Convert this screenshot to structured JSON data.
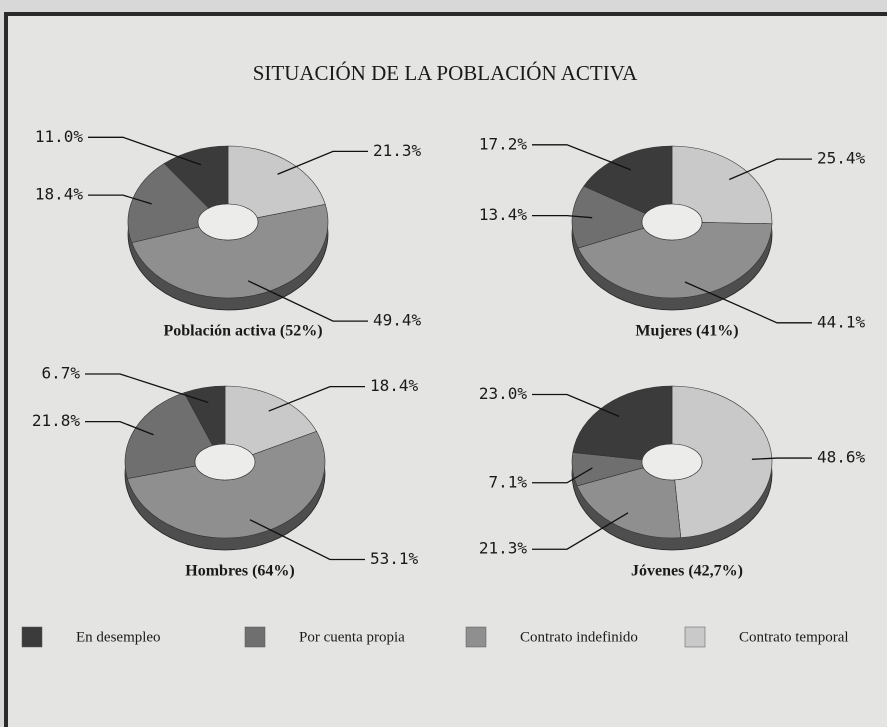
{
  "title": "SITUACIÓN DE LA POBLACIÓN ACTIVA",
  "legend": {
    "categories": [
      "En desempleo",
      "Por cuenta propia",
      "Contrato indefinido",
      "Contrato temporal"
    ],
    "colors": [
      "#3b3b3b",
      "#6f6f6f",
      "#8f8f8f",
      "#c9c9c9"
    ]
  },
  "chart_data": [
    {
      "type": "pie",
      "title": "Población activa (52%)",
      "values": [
        11.0,
        18.4,
        49.4,
        21.3
      ],
      "value_labels": [
        "11.0%",
        "18.4%",
        "49.4%",
        "21.3%"
      ]
    },
    {
      "type": "pie",
      "title": "Mujeres (41%)",
      "values": [
        17.2,
        13.4,
        44.1,
        25.4
      ],
      "value_labels": [
        "17.2%",
        "13.4%",
        "44.1%",
        "25.4%"
      ]
    },
    {
      "type": "pie",
      "title": "Hombres (64%)",
      "values": [
        6.7,
        21.8,
        53.1,
        18.4
      ],
      "value_labels": [
        "6.7%",
        "21.8%",
        "53.1%",
        "18.4%"
      ]
    },
    {
      "type": "pie",
      "title": "Jóvenes (42,7%)",
      "values": [
        23.0,
        7.1,
        21.3,
        48.6
      ],
      "value_labels": [
        "23.0%",
        "7.1%",
        "21.3%",
        "48.6%"
      ]
    }
  ]
}
